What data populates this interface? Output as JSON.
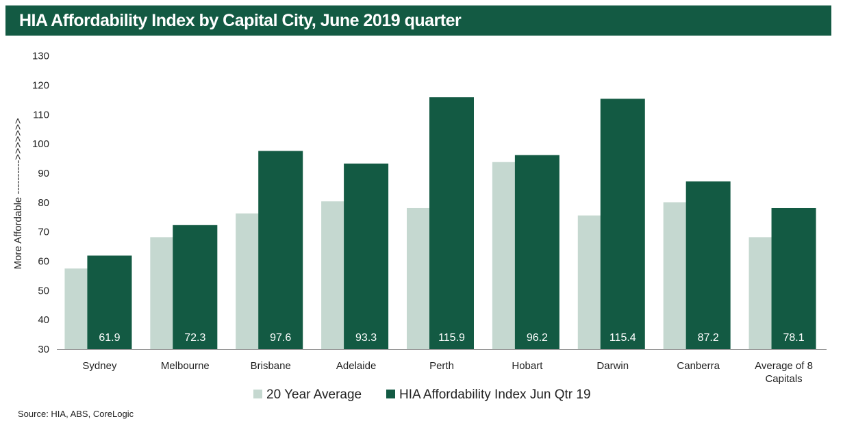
{
  "chart_data": {
    "type": "bar",
    "title": "HIA Affordability Index by Capital City, June 2019 quarter",
    "ylabel": "More Affordable ---------->>>>>>>",
    "ylim": [
      30,
      130
    ],
    "yticks": [
      30,
      40,
      50,
      60,
      70,
      80,
      90,
      100,
      110,
      120,
      130
    ],
    "categories": [
      "Sydney",
      "Melbourne",
      "Brisbane",
      "Adelaide",
      "Perth",
      "Hobart",
      "Darwin",
      "Canberra",
      "Average of 8 Capitals"
    ],
    "series": [
      {
        "name": "20 Year Average",
        "color": "#c5d8d0",
        "values": [
          57.5,
          68.2,
          76.3,
          80.4,
          78.1,
          93.8,
          75.6,
          80.1,
          68.2
        ]
      },
      {
        "name": "HIA Affordability Index Jun Qtr 19",
        "color": "#135a43",
        "values": [
          61.9,
          72.3,
          97.6,
          93.3,
          115.9,
          96.2,
          115.4,
          87.2,
          78.1
        ],
        "data_labels": [
          "61.9",
          "72.3",
          "97.6",
          "93.3",
          "115.9",
          "96.2",
          "115.4",
          "87.2",
          "78.1"
        ]
      }
    ],
    "grid": false,
    "legend_position": "bottom"
  },
  "source": "Source: HIA, ABS, CoreLogic"
}
